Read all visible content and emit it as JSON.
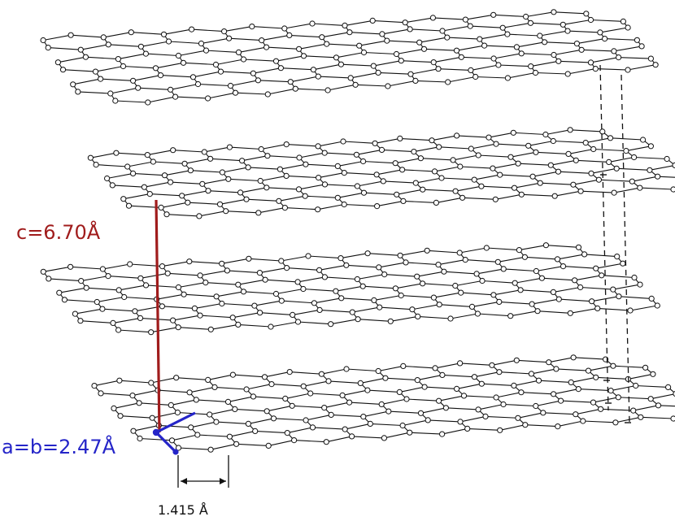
{
  "labels": {
    "c_axis": "c=6.70Å",
    "ab_axis": "a=b=2.47Å",
    "bond_length": "1.415 Å"
  },
  "colors": {
    "c_axis": "#a01c1c",
    "ab_axis": "#2525c8",
    "lattice": "#111111",
    "atom_fill": "#ffffff"
  },
  "diagram": {
    "subject": "graphite crystal structure",
    "layer_count": 4,
    "layers": [
      {
        "name": "graphene-layer-1"
      },
      {
        "name": "graphene-layer-2"
      },
      {
        "name": "graphene-layer-3"
      },
      {
        "name": "graphene-layer-4"
      }
    ]
  }
}
